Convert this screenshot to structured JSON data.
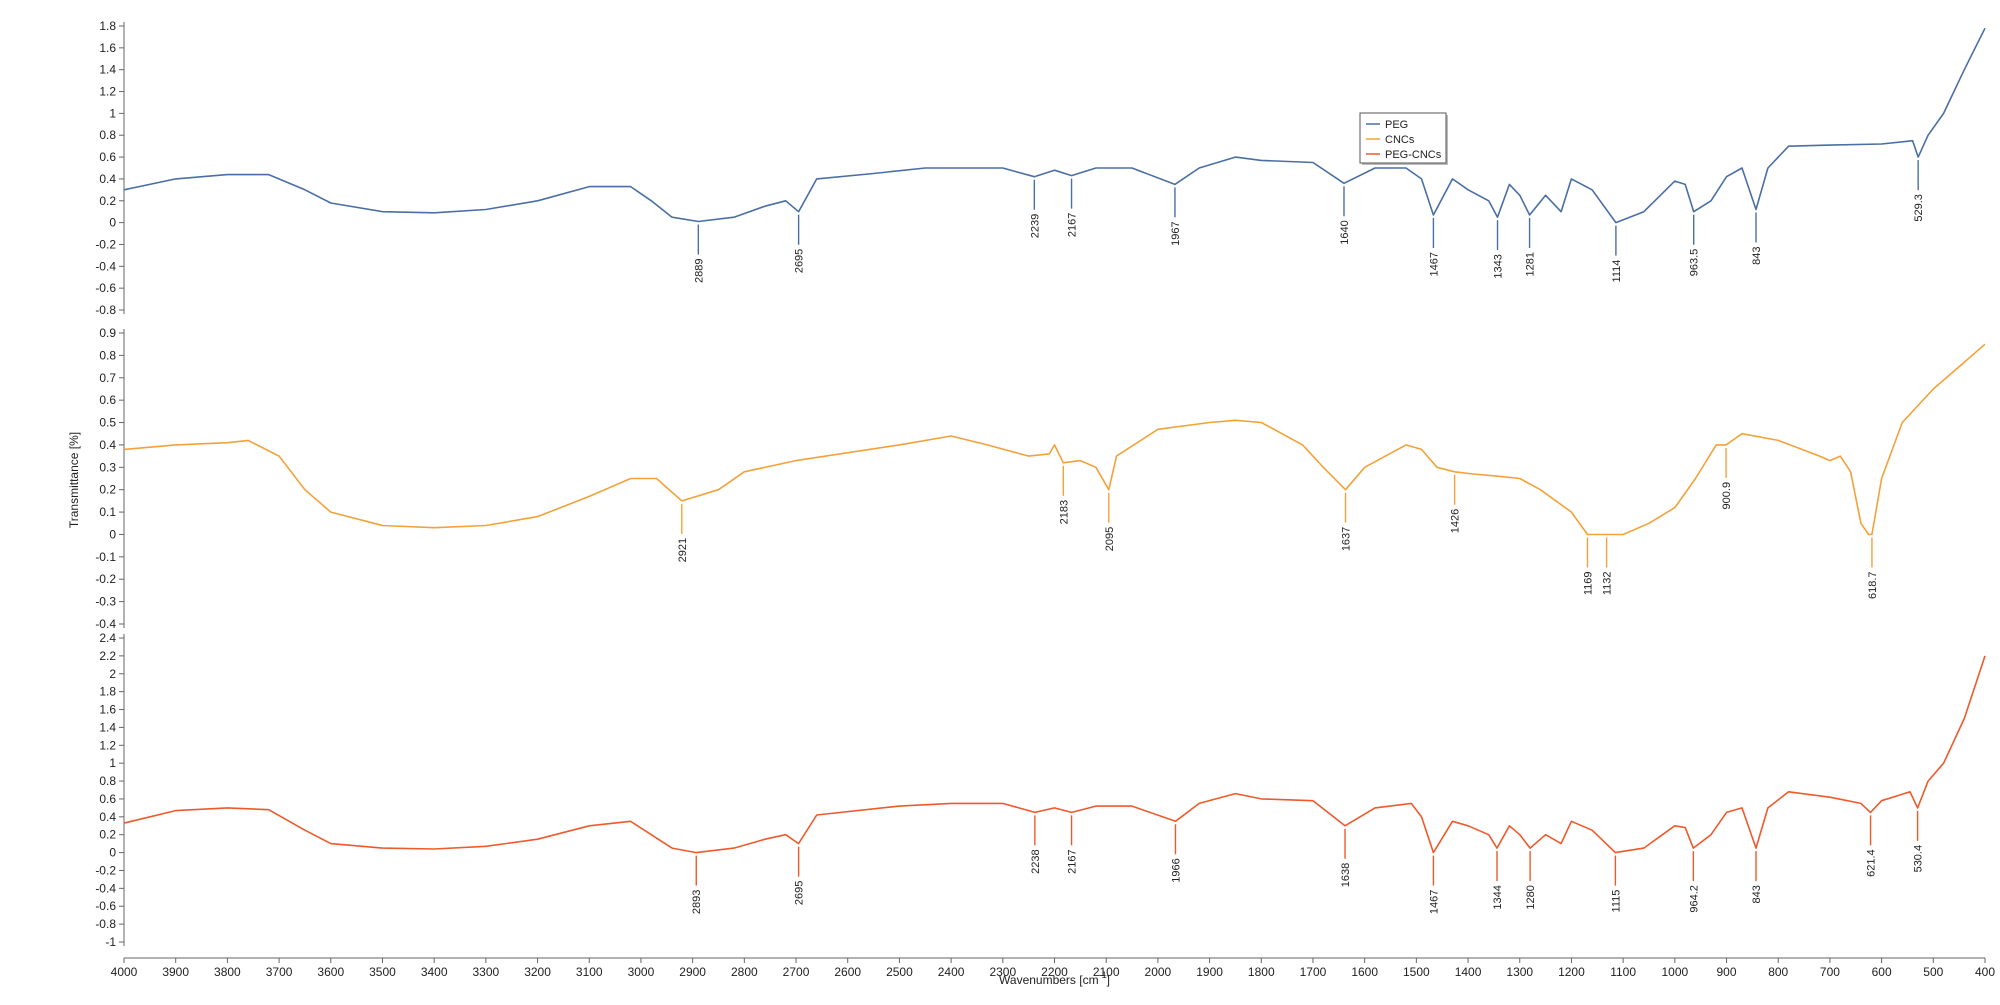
{
  "chart_data": {
    "type": "line",
    "xlabel": "Wavenumbers [cm",
    "xlabel_sup": "-1",
    "xlabel_end": "]",
    "ylabel": "Transmittance [%]",
    "xlim": [
      4000,
      400
    ],
    "x_ticks": [
      4000,
      3900,
      3800,
      3700,
      3600,
      3500,
      3400,
      3300,
      3200,
      3100,
      3000,
      2900,
      2800,
      2700,
      2600,
      2500,
      2400,
      2300,
      2200,
      2100,
      2000,
      1900,
      1800,
      1700,
      1600,
      1500,
      1400,
      1300,
      1200,
      1100,
      1000,
      900,
      800,
      700,
      600,
      500,
      400
    ],
    "legend": {
      "position": "top-right",
      "entries": [
        "PEG",
        "CNCs",
        "PEG-CNCs"
      ]
    },
    "grid": false,
    "panels": [
      {
        "name": "PEG",
        "color": "#4a6fa5",
        "ylim": [
          -0.8,
          1.8
        ],
        "y_ticks": [
          "1.8",
          "1.6",
          "1.4",
          "1.2",
          "1",
          "0.8",
          "0.6",
          "0.4",
          "0.2",
          "0",
          "-0.2",
          "-0.4",
          "-0.6",
          "-0.8"
        ],
        "points": [
          [
            4000,
            0.3
          ],
          [
            3900,
            0.4
          ],
          [
            3800,
            0.44
          ],
          [
            3720,
            0.44
          ],
          [
            3650,
            0.3
          ],
          [
            3600,
            0.18
          ],
          [
            3500,
            0.1
          ],
          [
            3400,
            0.09
          ],
          [
            3300,
            0.12
          ],
          [
            3200,
            0.2
          ],
          [
            3100,
            0.33
          ],
          [
            3020,
            0.33
          ],
          [
            2980,
            0.2
          ],
          [
            2940,
            0.05
          ],
          [
            2889,
            0.01
          ],
          [
            2820,
            0.05
          ],
          [
            2760,
            0.15
          ],
          [
            2720,
            0.2
          ],
          [
            2695,
            0.1
          ],
          [
            2660,
            0.4
          ],
          [
            2550,
            0.45
          ],
          [
            2450,
            0.5
          ],
          [
            2300,
            0.5
          ],
          [
            2239,
            0.42
          ],
          [
            2200,
            0.48
          ],
          [
            2167,
            0.43
          ],
          [
            2120,
            0.5
          ],
          [
            2050,
            0.5
          ],
          [
            1967,
            0.35
          ],
          [
            1920,
            0.5
          ],
          [
            1850,
            0.6
          ],
          [
            1800,
            0.57
          ],
          [
            1700,
            0.55
          ],
          [
            1640,
            0.36
          ],
          [
            1580,
            0.5
          ],
          [
            1520,
            0.5
          ],
          [
            1490,
            0.4
          ],
          [
            1467,
            0.07
          ],
          [
            1430,
            0.4
          ],
          [
            1400,
            0.3
          ],
          [
            1360,
            0.2
          ],
          [
            1343,
            0.05
          ],
          [
            1320,
            0.35
          ],
          [
            1300,
            0.25
          ],
          [
            1281,
            0.07
          ],
          [
            1250,
            0.25
          ],
          [
            1220,
            0.1
          ],
          [
            1200,
            0.4
          ],
          [
            1160,
            0.3
          ],
          [
            1114,
            0.0
          ],
          [
            1060,
            0.1
          ],
          [
            1000,
            0.38
          ],
          [
            980,
            0.35
          ],
          [
            963.5,
            0.1
          ],
          [
            930,
            0.2
          ],
          [
            900,
            0.42
          ],
          [
            870,
            0.5
          ],
          [
            843,
            0.12
          ],
          [
            820,
            0.5
          ],
          [
            780,
            0.7
          ],
          [
            700,
            0.71
          ],
          [
            600,
            0.72
          ],
          [
            540,
            0.75
          ],
          [
            529.3,
            0.6
          ],
          [
            510,
            0.8
          ],
          [
            480,
            1.0
          ],
          [
            440,
            1.4
          ],
          [
            400,
            1.78
          ]
        ],
        "peaks": [
          {
            "x": 2889,
            "label": "2889"
          },
          {
            "x": 2695,
            "label": "2695"
          },
          {
            "x": 2239,
            "label": "2239"
          },
          {
            "x": 2167,
            "label": "2167"
          },
          {
            "x": 1967,
            "label": "1967"
          },
          {
            "x": 1640,
            "label": "1640"
          },
          {
            "x": 1467,
            "label": "1467"
          },
          {
            "x": 1343,
            "label": "1343"
          },
          {
            "x": 1281,
            "label": "1281"
          },
          {
            "x": 1114,
            "label": "1114"
          },
          {
            "x": 963.5,
            "label": "963.5"
          },
          {
            "x": 843,
            "label": "843"
          },
          {
            "x": 529.3,
            "label": "529.3"
          }
        ]
      },
      {
        "name": "CNCs",
        "color": "#f3a23a",
        "ylim": [
          -0.4,
          0.9
        ],
        "y_ticks": [
          "0.9",
          "0.8",
          "0.7",
          "0.6",
          "0.5",
          "0.4",
          "0.3",
          "0.2",
          "0.1",
          "0",
          "-0.1",
          "-0.2",
          "-0.3",
          "-0.4"
        ],
        "points": [
          [
            4000,
            0.38
          ],
          [
            3900,
            0.4
          ],
          [
            3800,
            0.41
          ],
          [
            3760,
            0.42
          ],
          [
            3700,
            0.35
          ],
          [
            3650,
            0.2
          ],
          [
            3600,
            0.1
          ],
          [
            3500,
            0.04
          ],
          [
            3400,
            0.03
          ],
          [
            3300,
            0.04
          ],
          [
            3200,
            0.08
          ],
          [
            3100,
            0.17
          ],
          [
            3020,
            0.25
          ],
          [
            2970,
            0.25
          ],
          [
            2921,
            0.15
          ],
          [
            2850,
            0.2
          ],
          [
            2800,
            0.28
          ],
          [
            2700,
            0.33
          ],
          [
            2500,
            0.4
          ],
          [
            2400,
            0.44
          ],
          [
            2330,
            0.4
          ],
          [
            2250,
            0.35
          ],
          [
            2210,
            0.36
          ],
          [
            2200,
            0.4
          ],
          [
            2183,
            0.32
          ],
          [
            2150,
            0.33
          ],
          [
            2120,
            0.3
          ],
          [
            2095,
            0.2
          ],
          [
            2080,
            0.35
          ],
          [
            2000,
            0.47
          ],
          [
            1900,
            0.5
          ],
          [
            1850,
            0.51
          ],
          [
            1800,
            0.5
          ],
          [
            1720,
            0.4
          ],
          [
            1680,
            0.3
          ],
          [
            1637,
            0.2
          ],
          [
            1600,
            0.3
          ],
          [
            1520,
            0.4
          ],
          [
            1490,
            0.38
          ],
          [
            1460,
            0.3
          ],
          [
            1426,
            0.28
          ],
          [
            1390,
            0.27
          ],
          [
            1340,
            0.26
          ],
          [
            1300,
            0.25
          ],
          [
            1260,
            0.2
          ],
          [
            1200,
            0.1
          ],
          [
            1169,
            0.0
          ],
          [
            1132,
            0.0
          ],
          [
            1100,
            0.0
          ],
          [
            1050,
            0.05
          ],
          [
            1000,
            0.12
          ],
          [
            960,
            0.25
          ],
          [
            920,
            0.4
          ],
          [
            900.9,
            0.4
          ],
          [
            870,
            0.45
          ],
          [
            800,
            0.42
          ],
          [
            720,
            0.35
          ],
          [
            700,
            0.33
          ],
          [
            680,
            0.35
          ],
          [
            660,
            0.28
          ],
          [
            640,
            0.05
          ],
          [
            625,
            0.0
          ],
          [
            618.7,
            0.0
          ],
          [
            600,
            0.25
          ],
          [
            560,
            0.5
          ],
          [
            500,
            0.65
          ],
          [
            450,
            0.75
          ],
          [
            400,
            0.85
          ]
        ],
        "peaks": [
          {
            "x": 2921,
            "label": "2921"
          },
          {
            "x": 2183,
            "label": "2183"
          },
          {
            "x": 2095,
            "label": "2095"
          },
          {
            "x": 1637,
            "label": "1637"
          },
          {
            "x": 1426,
            "label": "1426"
          },
          {
            "x": 1169,
            "label": "1169"
          },
          {
            "x": 1132,
            "label": "1132"
          },
          {
            "x": 900.9,
            "label": "900.9"
          },
          {
            "x": 618.7,
            "label": "618.7"
          }
        ]
      },
      {
        "name": "PEG-CNCs",
        "color": "#ee5a2c",
        "ylim": [
          -1.0,
          2.4
        ],
        "y_ticks": [
          "2.4",
          "2.2",
          "2",
          "1.8",
          "1.6",
          "1.4",
          "1.2",
          "1",
          "0.8",
          "0.6",
          "0.4",
          "0.2",
          "0",
          "-0.2",
          "-0.4",
          "-0.6",
          "-0.8",
          "-1"
        ],
        "points": [
          [
            4000,
            0.33
          ],
          [
            3900,
            0.47
          ],
          [
            3800,
            0.5
          ],
          [
            3720,
            0.48
          ],
          [
            3650,
            0.25
          ],
          [
            3600,
            0.1
          ],
          [
            3500,
            0.05
          ],
          [
            3400,
            0.04
          ],
          [
            3300,
            0.07
          ],
          [
            3200,
            0.15
          ],
          [
            3100,
            0.3
          ],
          [
            3020,
            0.35
          ],
          [
            2980,
            0.2
          ],
          [
            2940,
            0.05
          ],
          [
            2893,
            0.0
          ],
          [
            2820,
            0.05
          ],
          [
            2760,
            0.15
          ],
          [
            2720,
            0.2
          ],
          [
            2695,
            0.1
          ],
          [
            2660,
            0.42
          ],
          [
            2500,
            0.52
          ],
          [
            2400,
            0.55
          ],
          [
            2300,
            0.55
          ],
          [
            2238,
            0.45
          ],
          [
            2200,
            0.5
          ],
          [
            2167,
            0.45
          ],
          [
            2120,
            0.52
          ],
          [
            2050,
            0.52
          ],
          [
            1966,
            0.35
          ],
          [
            1920,
            0.55
          ],
          [
            1850,
            0.66
          ],
          [
            1800,
            0.6
          ],
          [
            1700,
            0.58
          ],
          [
            1638,
            0.3
          ],
          [
            1580,
            0.5
          ],
          [
            1510,
            0.55
          ],
          [
            1490,
            0.4
          ],
          [
            1467,
            0.0
          ],
          [
            1430,
            0.35
          ],
          [
            1400,
            0.3
          ],
          [
            1360,
            0.2
          ],
          [
            1344,
            0.05
          ],
          [
            1320,
            0.3
          ],
          [
            1300,
            0.2
          ],
          [
            1280,
            0.05
          ],
          [
            1250,
            0.2
          ],
          [
            1220,
            0.1
          ],
          [
            1200,
            0.35
          ],
          [
            1160,
            0.25
          ],
          [
            1115,
            0.0
          ],
          [
            1060,
            0.05
          ],
          [
            1000,
            0.3
          ],
          [
            980,
            0.28
          ],
          [
            964.2,
            0.05
          ],
          [
            930,
            0.2
          ],
          [
            900,
            0.45
          ],
          [
            870,
            0.5
          ],
          [
            843,
            0.05
          ],
          [
            820,
            0.5
          ],
          [
            780,
            0.68
          ],
          [
            700,
            0.62
          ],
          [
            640,
            0.55
          ],
          [
            621.4,
            0.45
          ],
          [
            600,
            0.58
          ],
          [
            545,
            0.68
          ],
          [
            530.4,
            0.5
          ],
          [
            510,
            0.8
          ],
          [
            480,
            1.0
          ],
          [
            440,
            1.5
          ],
          [
            400,
            2.2
          ]
        ],
        "peaks": [
          {
            "x": 2893,
            "label": "2893"
          },
          {
            "x": 2695,
            "label": "2695"
          },
          {
            "x": 2238,
            "label": "2238"
          },
          {
            "x": 2167,
            "label": "2167"
          },
          {
            "x": 1966,
            "label": "1966"
          },
          {
            "x": 1638,
            "label": "1638"
          },
          {
            "x": 1467,
            "label": "1467"
          },
          {
            "x": 1344,
            "label": "1344"
          },
          {
            "x": 1280,
            "label": "1280"
          },
          {
            "x": 1115,
            "label": "1115"
          },
          {
            "x": 964.2,
            "label": "964.2"
          },
          {
            "x": 843,
            "label": "843"
          },
          {
            "x": 621.4,
            "label": "621.4"
          },
          {
            "x": 530.4,
            "label": "530.4"
          }
        ]
      }
    ]
  }
}
